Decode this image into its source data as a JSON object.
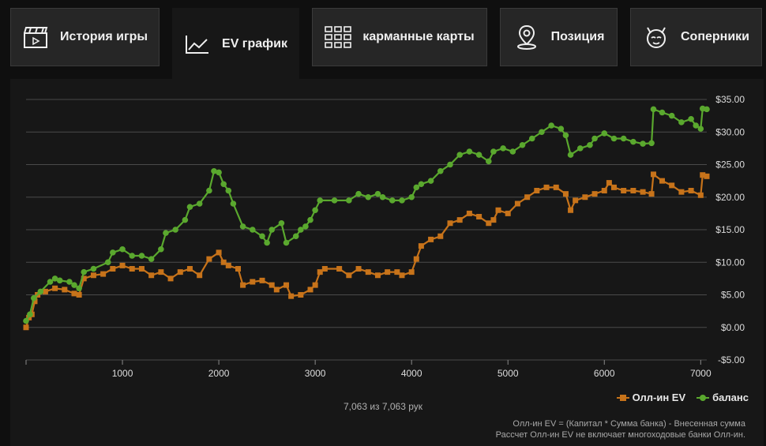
{
  "tabs": [
    {
      "label": "История игры",
      "icon": "clapperboard-icon",
      "active": false
    },
    {
      "label": "EV график",
      "icon": "line-chart-icon",
      "active": true
    },
    {
      "label": "карманные карты",
      "icon": "card-grid-icon",
      "active": false
    },
    {
      "label": "Позиция",
      "icon": "location-pin-icon",
      "active": false
    },
    {
      "label": "Соперники",
      "icon": "cat-face-icon",
      "active": false
    }
  ],
  "counter_text": "7,063 из 7,063 рук",
  "note_lines": [
    "Олл-ин EV = (Капитал * Сумма банка) - Внесенная сумма",
    "Рассчет Олл-ин EV не включает многоходовые банки Олл-ин."
  ],
  "chart_data": {
    "type": "line",
    "xlim": [
      0,
      7063
    ],
    "ylim": [
      -5,
      35
    ],
    "x_ticks": [
      0,
      1000,
      2000,
      3000,
      4000,
      5000,
      6000,
      7000
    ],
    "x_tick_labels": [
      "",
      "1000",
      "2000",
      "3000",
      "4000",
      "5000",
      "6000",
      "7000"
    ],
    "y_ticks": [
      -5,
      0,
      5,
      10,
      15,
      20,
      25,
      30,
      35
    ],
    "y_tick_labels": [
      "-$5.00",
      "$0.00",
      "$5.00",
      "$10.00",
      "$15.00",
      "$20.00",
      "$25.00",
      "$30.00",
      "$35.00"
    ],
    "grid": true,
    "legend_position": "bottom-right",
    "series": [
      {
        "name": "Олл-ин EV",
        "color": "#c7731a",
        "marker": "square",
        "points": [
          [
            0,
            0
          ],
          [
            30,
            1.5
          ],
          [
            60,
            2
          ],
          [
            90,
            4
          ],
          [
            120,
            5
          ],
          [
            200,
            5.5
          ],
          [
            300,
            6
          ],
          [
            400,
            5.8
          ],
          [
            500,
            5.2
          ],
          [
            550,
            5
          ],
          [
            600,
            7.5
          ],
          [
            700,
            8
          ],
          [
            800,
            8.2
          ],
          [
            900,
            9
          ],
          [
            1000,
            9.5
          ],
          [
            1100,
            9
          ],
          [
            1200,
            9
          ],
          [
            1300,
            8
          ],
          [
            1400,
            8.5
          ],
          [
            1500,
            7.5
          ],
          [
            1600,
            8.5
          ],
          [
            1700,
            9
          ],
          [
            1800,
            8
          ],
          [
            1900,
            10.5
          ],
          [
            2000,
            11.5
          ],
          [
            2050,
            10
          ],
          [
            2100,
            9.5
          ],
          [
            2200,
            9
          ],
          [
            2250,
            6.5
          ],
          [
            2350,
            7
          ],
          [
            2450,
            7.2
          ],
          [
            2550,
            6.5
          ],
          [
            2600,
            5.8
          ],
          [
            2700,
            6.5
          ],
          [
            2750,
            4.8
          ],
          [
            2850,
            5
          ],
          [
            2950,
            5.8
          ],
          [
            3000,
            6.5
          ],
          [
            3050,
            8.5
          ],
          [
            3100,
            9
          ],
          [
            3250,
            9
          ],
          [
            3350,
            8
          ],
          [
            3450,
            9
          ],
          [
            3550,
            8.5
          ],
          [
            3650,
            8
          ],
          [
            3750,
            8.5
          ],
          [
            3850,
            8.5
          ],
          [
            3900,
            8
          ],
          [
            4000,
            8.5
          ],
          [
            4050,
            10.5
          ],
          [
            4100,
            12.5
          ],
          [
            4200,
            13.5
          ],
          [
            4300,
            14
          ],
          [
            4400,
            16
          ],
          [
            4500,
            16.5
          ],
          [
            4600,
            17.5
          ],
          [
            4700,
            17
          ],
          [
            4800,
            16
          ],
          [
            4850,
            16.5
          ],
          [
            4900,
            18
          ],
          [
            5000,
            17.5
          ],
          [
            5100,
            19
          ],
          [
            5200,
            20
          ],
          [
            5300,
            21
          ],
          [
            5400,
            21.5
          ],
          [
            5500,
            21.5
          ],
          [
            5600,
            20.5
          ],
          [
            5650,
            18
          ],
          [
            5700,
            19.5
          ],
          [
            5800,
            20
          ],
          [
            5900,
            20.5
          ],
          [
            6000,
            21
          ],
          [
            6050,
            22.2
          ],
          [
            6100,
            21.5
          ],
          [
            6200,
            21
          ],
          [
            6300,
            21
          ],
          [
            6400,
            20.8
          ],
          [
            6490,
            20.5
          ],
          [
            6510,
            23.5
          ],
          [
            6600,
            22.5
          ],
          [
            6700,
            21.8
          ],
          [
            6800,
            20.8
          ],
          [
            6900,
            21
          ],
          [
            7000,
            20.3
          ],
          [
            7020,
            23.4
          ],
          [
            7063,
            23.2
          ]
        ]
      },
      {
        "name": "баланс",
        "color": "#5aa82e",
        "marker": "circle",
        "points": [
          [
            0,
            1
          ],
          [
            40,
            2
          ],
          [
            80,
            4.5
          ],
          [
            150,
            5.5
          ],
          [
            250,
            7
          ],
          [
            300,
            7.5
          ],
          [
            350,
            7.2
          ],
          [
            450,
            7
          ],
          [
            500,
            6.5
          ],
          [
            550,
            6
          ],
          [
            600,
            8.5
          ],
          [
            700,
            9
          ],
          [
            850,
            10
          ],
          [
            900,
            11.5
          ],
          [
            1000,
            12
          ],
          [
            1100,
            11
          ],
          [
            1200,
            11
          ],
          [
            1300,
            10.5
          ],
          [
            1400,
            12
          ],
          [
            1450,
            14.5
          ],
          [
            1550,
            15
          ],
          [
            1650,
            16.5
          ],
          [
            1700,
            18.5
          ],
          [
            1800,
            19
          ],
          [
            1900,
            21
          ],
          [
            1950,
            24
          ],
          [
            2000,
            23.8
          ],
          [
            2050,
            22
          ],
          [
            2100,
            21
          ],
          [
            2150,
            19
          ],
          [
            2250,
            15.5
          ],
          [
            2350,
            15
          ],
          [
            2450,
            14
          ],
          [
            2500,
            13
          ],
          [
            2550,
            15
          ],
          [
            2650,
            16
          ],
          [
            2700,
            13
          ],
          [
            2800,
            14
          ],
          [
            2850,
            15
          ],
          [
            2900,
            15.5
          ],
          [
            2950,
            16.5
          ],
          [
            3000,
            18
          ],
          [
            3050,
            19.5
          ],
          [
            3200,
            19.5
          ],
          [
            3350,
            19.5
          ],
          [
            3450,
            20.5
          ],
          [
            3550,
            20
          ],
          [
            3650,
            20.5
          ],
          [
            3700,
            20
          ],
          [
            3800,
            19.5
          ],
          [
            3900,
            19.5
          ],
          [
            4000,
            20
          ],
          [
            4050,
            21.5
          ],
          [
            4100,
            22
          ],
          [
            4200,
            22.5
          ],
          [
            4300,
            24
          ],
          [
            4400,
            25
          ],
          [
            4500,
            26.5
          ],
          [
            4600,
            27
          ],
          [
            4700,
            26.5
          ],
          [
            4800,
            25.5
          ],
          [
            4850,
            27
          ],
          [
            4950,
            27.5
          ],
          [
            5050,
            27
          ],
          [
            5150,
            28
          ],
          [
            5250,
            29
          ],
          [
            5350,
            30
          ],
          [
            5450,
            31
          ],
          [
            5550,
            30.5
          ],
          [
            5600,
            29.5
          ],
          [
            5650,
            26.5
          ],
          [
            5750,
            27.5
          ],
          [
            5850,
            28
          ],
          [
            5900,
            29
          ],
          [
            6000,
            29.8
          ],
          [
            6100,
            29
          ],
          [
            6200,
            29
          ],
          [
            6300,
            28.5
          ],
          [
            6400,
            28.2
          ],
          [
            6490,
            28.3
          ],
          [
            6510,
            33.5
          ],
          [
            6600,
            33
          ],
          [
            6700,
            32.5
          ],
          [
            6800,
            31.5
          ],
          [
            6900,
            32
          ],
          [
            6950,
            31
          ],
          [
            7000,
            30.5
          ],
          [
            7020,
            33.6
          ],
          [
            7063,
            33.5
          ]
        ]
      }
    ]
  }
}
